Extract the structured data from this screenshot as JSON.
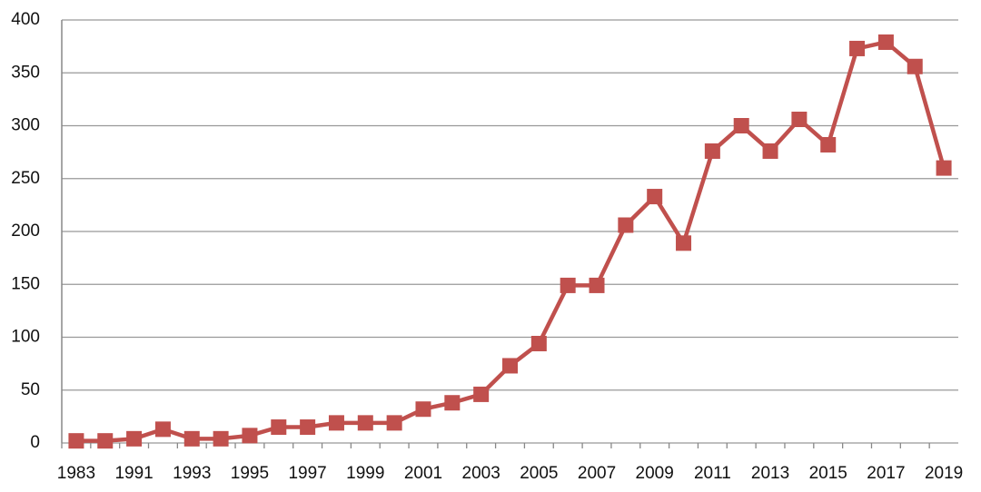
{
  "chart_data": {
    "type": "line",
    "categories": [
      "1983",
      null,
      "1991",
      null,
      "1993",
      null,
      "1995",
      null,
      "1997",
      null,
      "1999",
      null,
      "2001",
      null,
      "2003",
      null,
      "2005",
      null,
      "2007",
      null,
      "2009",
      null,
      "2011",
      null,
      "2013",
      null,
      "2015",
      null,
      "2017",
      null,
      "2019"
    ],
    "series": [
      {
        "color": "#c0504d",
        "values": [
          2,
          2,
          4,
          13,
          4,
          4,
          7,
          15,
          15,
          19,
          19,
          19,
          32,
          38,
          46,
          73,
          94,
          149,
          149,
          206,
          233,
          189,
          276,
          300,
          276,
          306,
          282,
          373,
          379,
          356,
          260
        ]
      }
    ],
    "ylim": [
      0,
      400
    ],
    "yticks": [
      0,
      50,
      100,
      150,
      200,
      250,
      300,
      350,
      400
    ],
    "grid": true
  }
}
